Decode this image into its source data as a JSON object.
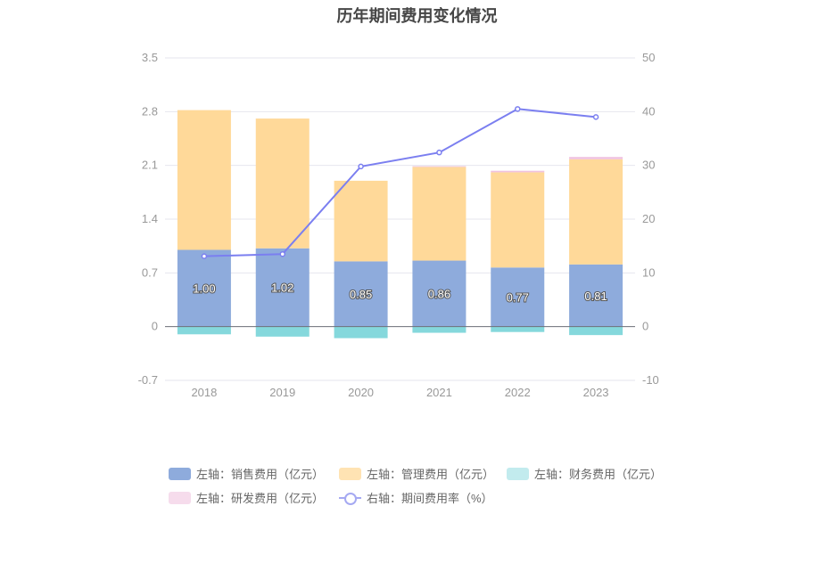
{
  "chart_data": {
    "type": "bar",
    "title": "历年期间费用变化情况",
    "categories": [
      "2018",
      "2019",
      "2020",
      "2021",
      "2022",
      "2023"
    ],
    "y_left": {
      "ticks": [
        "3.5",
        "2.8",
        "2.1",
        "1.4",
        "0.7",
        "0",
        "-0.7"
      ],
      "min": -0.7,
      "max": 3.5
    },
    "y_right": {
      "ticks": [
        "50",
        "40",
        "30",
        "20",
        "10",
        "0",
        "-10"
      ],
      "min": -10,
      "max": 50
    },
    "grid": true,
    "legend_position": "bottom",
    "series": [
      {
        "name": "左轴：销售费用（亿元）",
        "axis": "left",
        "kind": "stacked-bar",
        "color": "#8eabdc",
        "values": [
          1.0,
          1.02,
          0.85,
          0.86,
          0.77,
          0.81
        ],
        "labels": [
          "1.00",
          "1.02",
          "0.85",
          "0.86",
          "0.77",
          "0.81"
        ]
      },
      {
        "name": "左轴：管理费用（亿元）",
        "axis": "left",
        "kind": "stacked-bar",
        "color": "#ffd999",
        "values": [
          1.82,
          1.69,
          1.05,
          1.22,
          1.24,
          1.37
        ]
      },
      {
        "name": "左轴：财务费用（亿元）",
        "axis": "left",
        "kind": "stacked-bar",
        "color": "#85d8dc",
        "values": [
          -0.1,
          -0.13,
          -0.15,
          -0.08,
          -0.07,
          -0.11
        ]
      },
      {
        "name": "左轴：研发费用（亿元）",
        "axis": "left",
        "kind": "stacked-bar",
        "color": "#f0c3e0",
        "values": [
          0.0,
          0.0,
          0.0,
          0.01,
          0.02,
          0.03
        ]
      },
      {
        "name": "右轴：期间费用率（%）",
        "axis": "right",
        "kind": "line",
        "color": "#7b7ff0",
        "values": [
          13.1,
          13.5,
          29.8,
          32.4,
          40.5,
          39.0
        ]
      }
    ]
  },
  "legend": [
    {
      "label": "左轴：销售费用（亿元）",
      "swatch": "bar",
      "color": "#8eabdc"
    },
    {
      "label": "左轴：管理费用（亿元）",
      "swatch": "bar",
      "color": "#ffe3b3"
    },
    {
      "label": "左轴：财务费用（亿元）",
      "swatch": "bar",
      "color": "#c2ebee"
    },
    {
      "label": "左轴：研发费用（亿元）",
      "swatch": "bar",
      "color": "#f6dcec"
    },
    {
      "label": "右轴：期间费用率（%）",
      "swatch": "line",
      "color": "#a5a9f2"
    }
  ]
}
